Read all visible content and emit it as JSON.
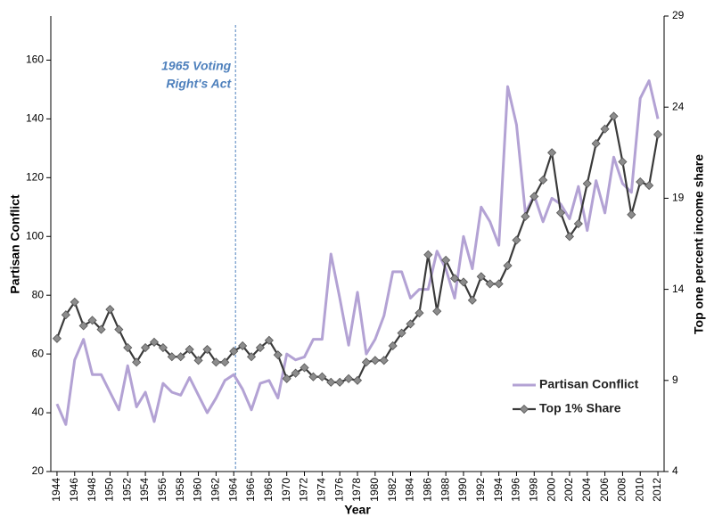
{
  "chart_data": {
    "type": "line",
    "x_label": "Year",
    "y_label": "Partisan Conflict",
    "y2_label": "Top one percent income share",
    "x": [
      1944,
      1945,
      1946,
      1947,
      1948,
      1949,
      1950,
      1951,
      1952,
      1953,
      1954,
      1955,
      1956,
      1957,
      1958,
      1959,
      1960,
      1961,
      1962,
      1963,
      1964,
      1965,
      1966,
      1967,
      1968,
      1969,
      1970,
      1971,
      1972,
      1973,
      1974,
      1975,
      1976,
      1977,
      1978,
      1979,
      1980,
      1981,
      1982,
      1983,
      1984,
      1985,
      1986,
      1987,
      1988,
      1989,
      1990,
      1991,
      1992,
      1993,
      1994,
      1995,
      1996,
      1997,
      1998,
      1999,
      2000,
      2001,
      2002,
      2003,
      2004,
      2005,
      2006,
      2007,
      2008,
      2009,
      2010,
      2011,
      2012
    ],
    "xlim": [
      1943.3,
      2012.7
    ],
    "xticks": [
      1944,
      1946,
      1948,
      1950,
      1952,
      1954,
      1956,
      1958,
      1960,
      1962,
      1964,
      1966,
      1968,
      1970,
      1972,
      1974,
      1976,
      1978,
      1980,
      1982,
      1984,
      1986,
      1988,
      1990,
      1992,
      1994,
      1996,
      1998,
      2000,
      2002,
      2004,
      2006,
      2008,
      2010,
      2012
    ],
    "ylim": [
      20,
      175
    ],
    "yticks": [
      20,
      40,
      60,
      80,
      100,
      120,
      140,
      160
    ],
    "y2lim": [
      4,
      29
    ],
    "y2ticks": [
      4,
      9,
      14,
      19,
      24,
      29
    ],
    "legend": "lower right",
    "series": [
      {
        "name": "Partisan Conflict",
        "color": "#b3a2d4",
        "marker": "none",
        "values": [
          43,
          36,
          58,
          65,
          53,
          53,
          47,
          41,
          56,
          42,
          47,
          37,
          50,
          47,
          46,
          52,
          46,
          40,
          45,
          51,
          53,
          48,
          41,
          50,
          51,
          45,
          60,
          58,
          59,
          65,
          65,
          94,
          79,
          63,
          81,
          60,
          65,
          73,
          88,
          88,
          79,
          82,
          82,
          95,
          89,
          79,
          100,
          89,
          110,
          105,
          97,
          151,
          138,
          108,
          114,
          105,
          113,
          111,
          106,
          117,
          102,
          119,
          108,
          127,
          118,
          115,
          147,
          153,
          140
        ]
      },
      {
        "name": "Top 1% Share",
        "color": "#3a3a3a",
        "marker": "diamond",
        "marker_color": "#8c8c8c",
        "axis": "y2",
        "values": [
          11.3,
          12.6,
          13.3,
          12.0,
          12.3,
          11.8,
          12.9,
          11.8,
          10.8,
          10.0,
          10.8,
          11.1,
          10.8,
          10.3,
          10.3,
          10.7,
          10.1,
          10.7,
          10.0,
          10.0,
          10.6,
          10.9,
          10.3,
          10.8,
          11.2,
          10.4,
          9.1,
          9.4,
          9.7,
          9.2,
          9.2,
          8.9,
          8.9,
          9.1,
          9.0,
          10.0,
          10.1,
          10.1,
          10.9,
          11.6,
          12.1,
          12.7,
          15.9,
          12.8,
          15.6,
          14.6,
          14.4,
          13.4,
          14.7,
          14.3,
          14.3,
          15.3,
          16.7,
          18.0,
          19.1,
          20.0,
          21.5,
          18.2,
          16.9,
          17.6,
          19.8,
          22.0,
          22.8,
          23.5,
          21.0,
          18.1,
          19.9,
          19.7,
          22.5
        ]
      }
    ],
    "annotation": {
      "lines": [
        "1965 Voting",
        "Right's Act"
      ],
      "x": 1964.2,
      "color": "#4f81bd"
    }
  }
}
